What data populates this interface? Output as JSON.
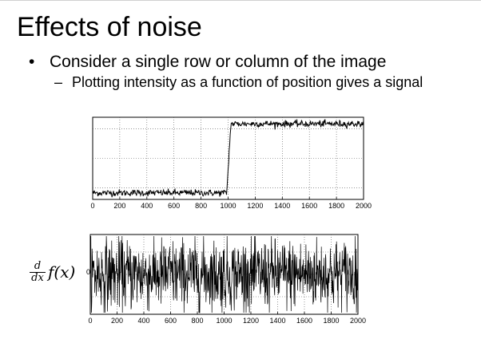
{
  "slide": {
    "title": "Effects of noise",
    "bullet1": {
      "marker": "•",
      "text": "Consider a single row or column of the image"
    },
    "bullet2": {
      "marker": "–",
      "text": "Plotting intensity as a function of position gives a signal"
    }
  },
  "derivative_label": {
    "numerator": "d",
    "denominator": "dx",
    "function": "f(x)"
  },
  "chart_data": [
    {
      "type": "line",
      "title": "",
      "xlabel": "",
      "ylabel": "",
      "xlim": [
        0,
        2000
      ],
      "xticks": [
        "0",
        "200",
        "400",
        "600",
        "800",
        "1000",
        "1200",
        "1400",
        "1600",
        "1800",
        "2000"
      ],
      "yticks": [],
      "grid": true,
      "description_values": {
        "low_level": 0.08,
        "high_level": 0.92,
        "step_start": 990,
        "step_end": 1020,
        "noise_amplitude": 0.02
      },
      "series": [
        {
          "x_start": 0,
          "x_end": 2000
        }
      ]
    },
    {
      "type": "line",
      "title": "",
      "xlabel": "",
      "ylabel": "",
      "xlim": [
        0,
        2000
      ],
      "xticks": [
        "0",
        "200",
        "400",
        "600",
        "800",
        "1000",
        "1200",
        "1400",
        "1600",
        "1800",
        "2000"
      ],
      "yticks": [
        "0"
      ],
      "grid": true,
      "description_values": {
        "center": 0,
        "noise_amplitude": 1
      },
      "series": [
        {
          "x_start": 0,
          "x_end": 2000
        }
      ]
    }
  ]
}
